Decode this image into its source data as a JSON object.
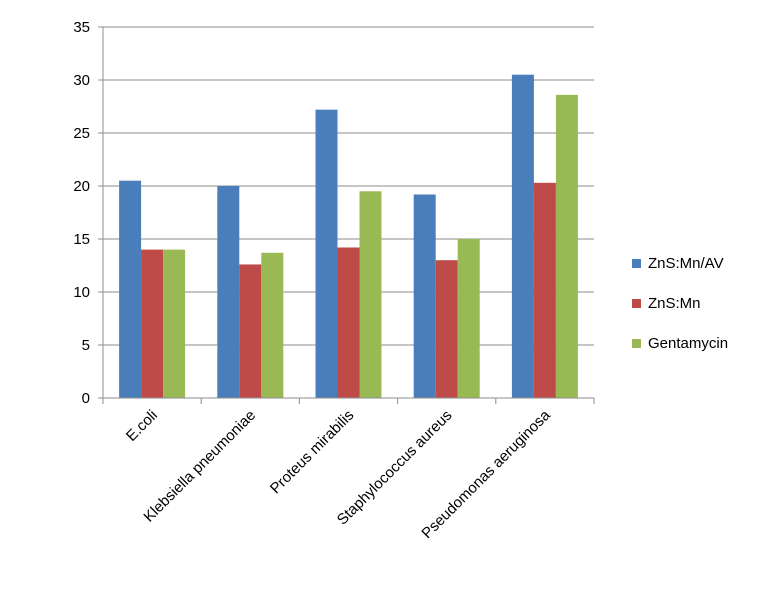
{
  "chart_data": {
    "type": "bar",
    "categories": [
      "E.coli",
      "Klebsiella pneumoniae",
      "Proteus mirabilis",
      "Staphylococcus aureus",
      "Pseudomonas aeruginosa"
    ],
    "series": [
      {
        "name": "ZnS:Mn/AV",
        "color": "#4A7EBB",
        "values": [
          20.5,
          20,
          27.2,
          19.2,
          30.5
        ]
      },
      {
        "name": "ZnS:Mn",
        "color": "#BE4B48",
        "values": [
          14,
          12.6,
          14.2,
          13,
          20.3
        ]
      },
      {
        "name": "Gentamycin",
        "color": "#98B954",
        "values": [
          14,
          13.7,
          19.5,
          15,
          28.6
        ]
      }
    ],
    "title": "",
    "xlabel": "",
    "ylabel": "",
    "ylim": [
      0,
      35
    ],
    "yticks": [
      0,
      5,
      10,
      15,
      20,
      25,
      30,
      35
    ],
    "grid": "horizontal",
    "legend_position": "right"
  }
}
